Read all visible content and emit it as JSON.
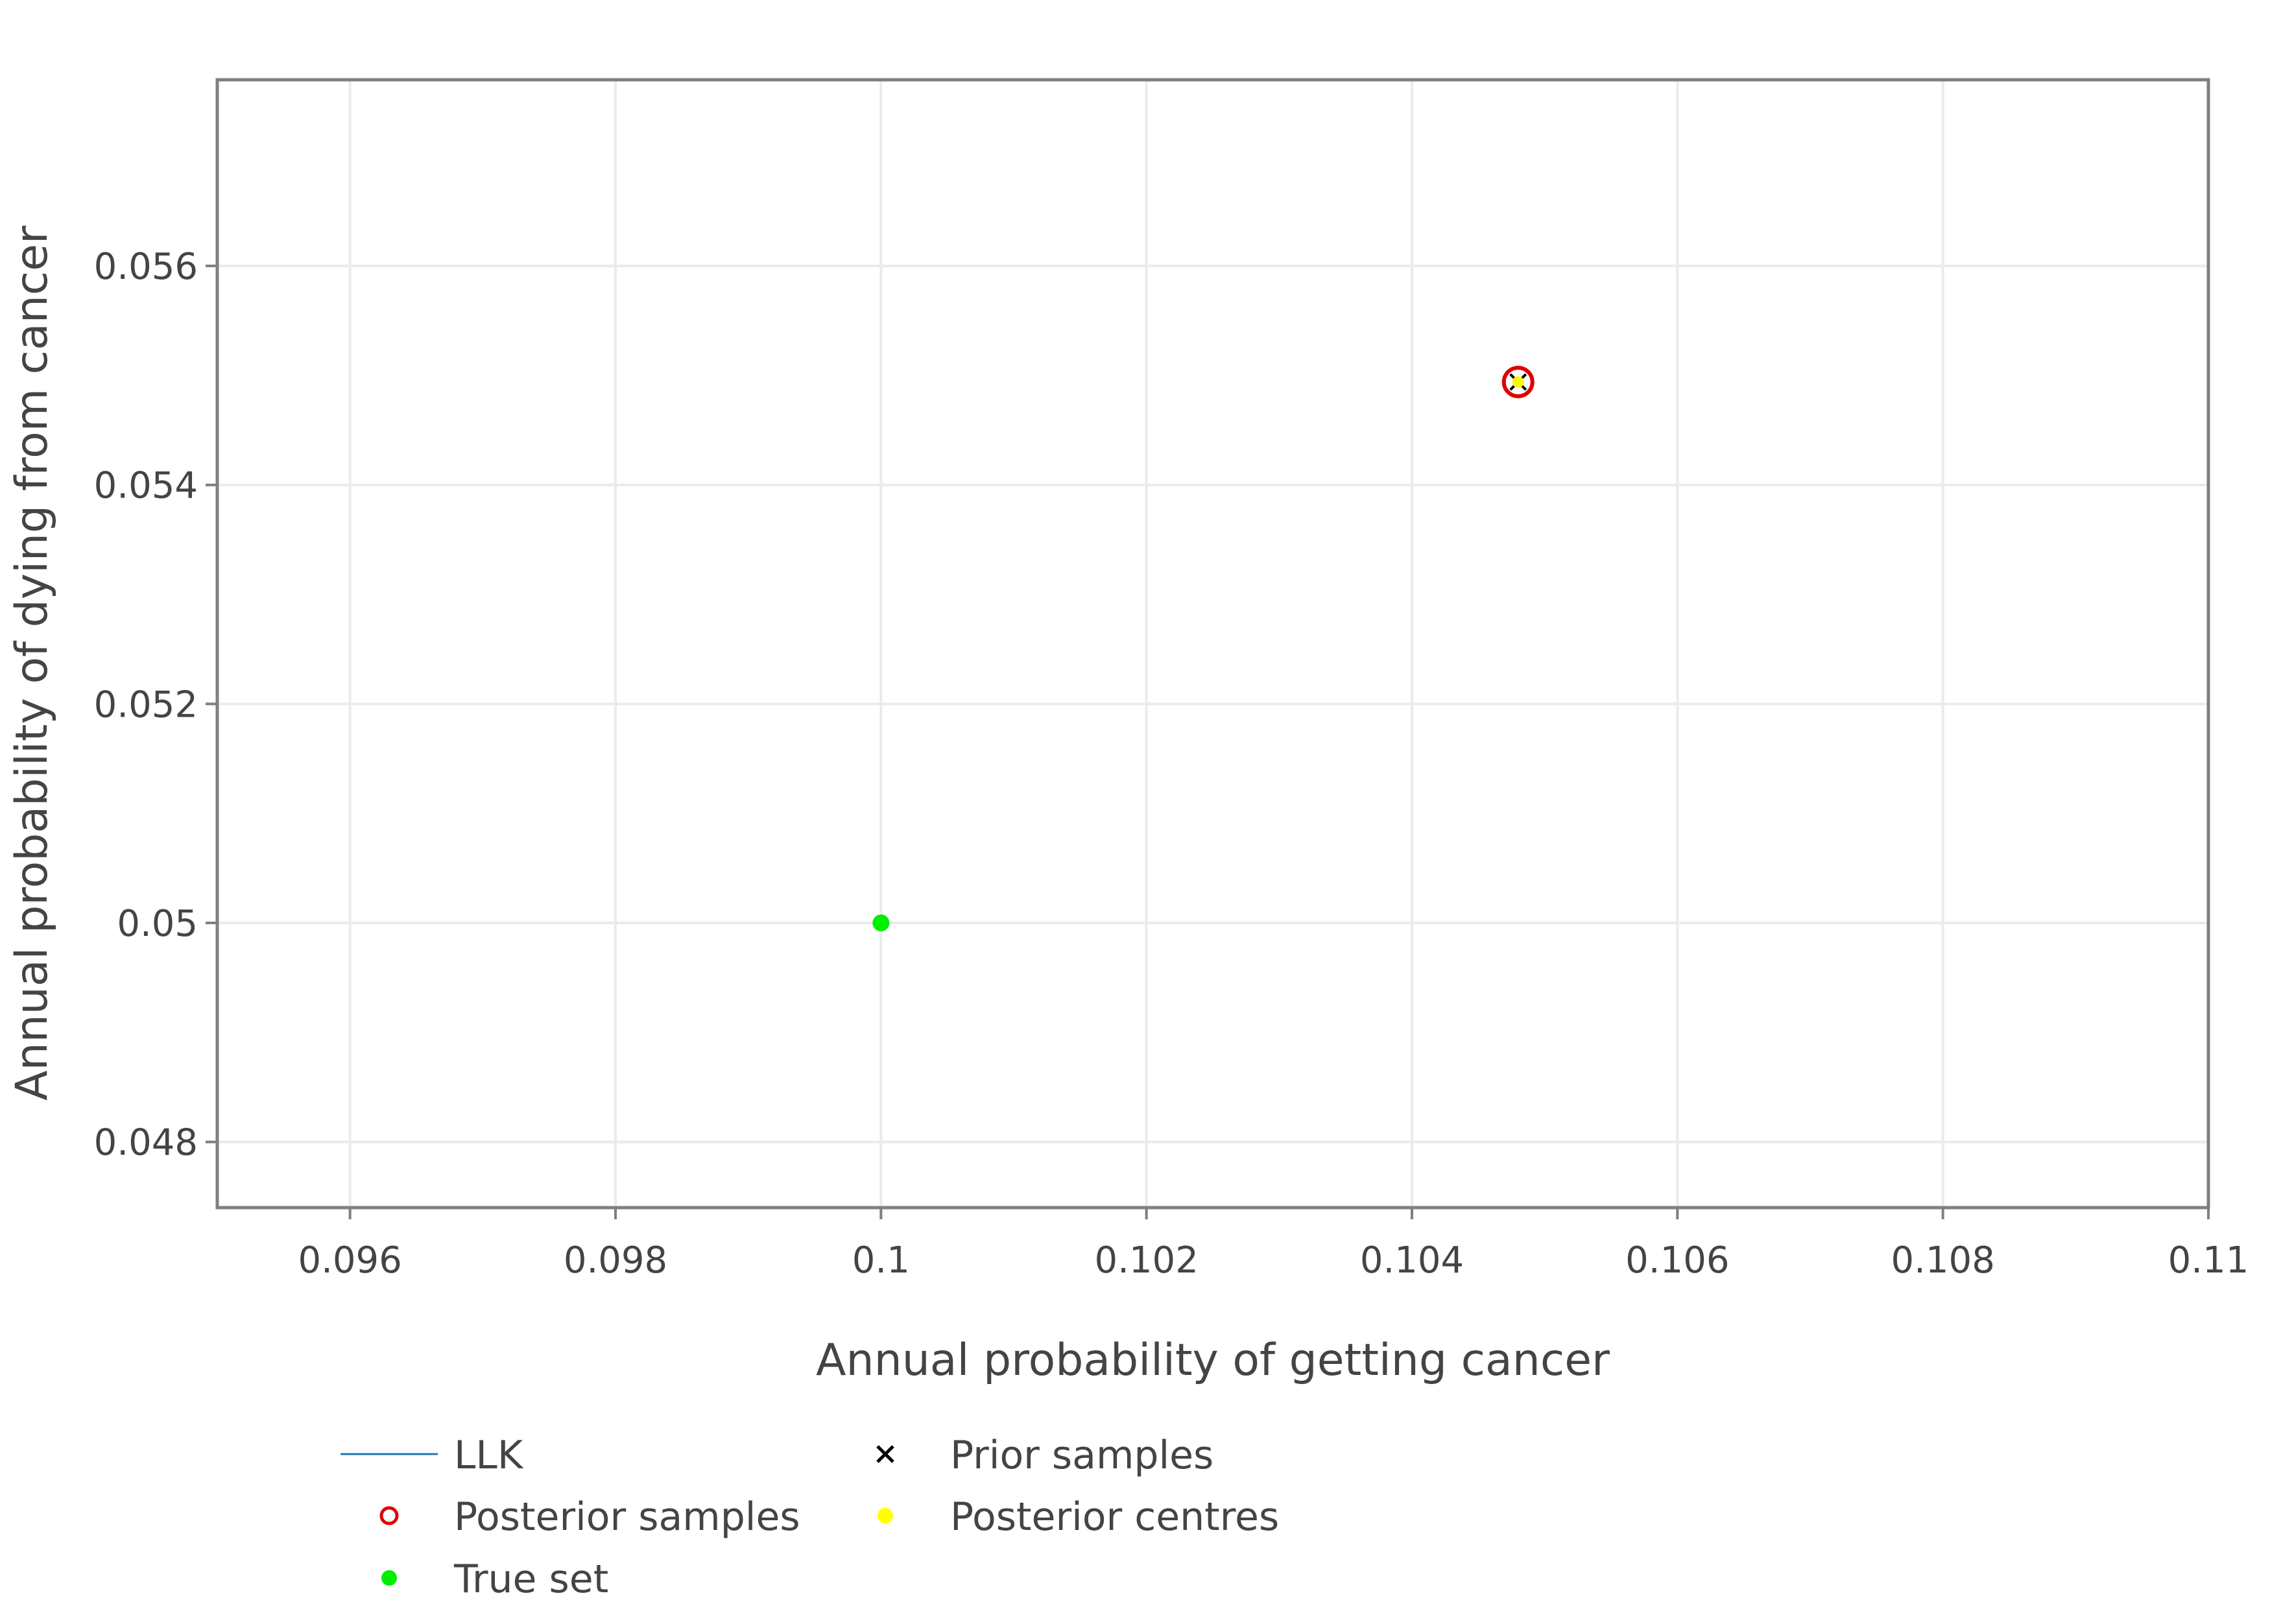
{
  "chart_data": {
    "type": "scatter",
    "title": "",
    "xlabel": "Annual probability of getting cancer",
    "ylabel": "Annual probability of dying from cancer",
    "xlim": [
      0.095,
      0.11
    ],
    "ylim": [
      0.0474,
      0.0577
    ],
    "xticks": [
      {
        "value": 0.096,
        "label": "0.096"
      },
      {
        "value": 0.098,
        "label": "0.098"
      },
      {
        "value": 0.1,
        "label": "0.1"
      },
      {
        "value": 0.102,
        "label": "0.102"
      },
      {
        "value": 0.104,
        "label": "0.104"
      },
      {
        "value": 0.106,
        "label": "0.106"
      },
      {
        "value": 0.108,
        "label": "0.108"
      },
      {
        "value": 0.11,
        "label": "0.11"
      }
    ],
    "yticks": [
      {
        "value": 0.048,
        "label": "0.048"
      },
      {
        "value": 0.05,
        "label": "0.05"
      },
      {
        "value": 0.052,
        "label": "0.052"
      },
      {
        "value": 0.054,
        "label": "0.054"
      },
      {
        "value": 0.056,
        "label": "0.056"
      }
    ],
    "grid": true,
    "legend_position": "bottom",
    "series": [
      {
        "name": "LLK",
        "kind": "line",
        "color": "#1f77b4",
        "points": []
      },
      {
        "name": "Prior samples",
        "kind": "x",
        "color": "#000000",
        "points": [
          {
            "x": 0.1048,
            "y": 0.05494
          }
        ]
      },
      {
        "name": "Posterior samples",
        "kind": "open-circle",
        "color": "#e00000",
        "points": [
          {
            "x": 0.1048,
            "y": 0.05494
          }
        ]
      },
      {
        "name": "Posterior centres",
        "kind": "dot",
        "color": "#ffff00",
        "points": [
          {
            "x": 0.1048,
            "y": 0.05494
          }
        ]
      },
      {
        "name": "True set",
        "kind": "dot",
        "color": "#00ee00",
        "points": [
          {
            "x": 0.1,
            "y": 0.05
          }
        ]
      }
    ],
    "legend_order": [
      [
        "LLK",
        "Prior samples"
      ],
      [
        "Posterior samples",
        "Posterior centres"
      ],
      [
        "True set"
      ]
    ]
  }
}
